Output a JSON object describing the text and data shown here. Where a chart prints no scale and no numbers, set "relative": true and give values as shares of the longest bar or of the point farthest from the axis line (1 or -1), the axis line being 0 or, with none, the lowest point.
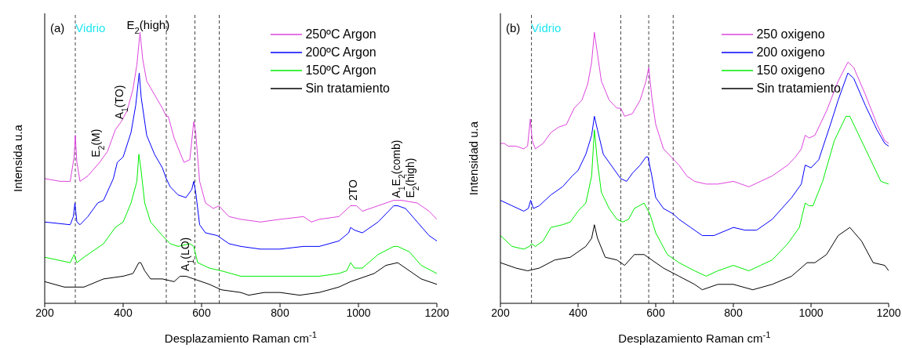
{
  "chart_data": [
    {
      "type": "line",
      "relative": true,
      "xlabel": "Desplazamiento Raman cm$^{-1}$",
      "ylabel": "Intensida u.a",
      "xlim": [
        200,
        1200
      ],
      "xticks": [
        200,
        400,
        600,
        800,
        1000,
        1200
      ],
      "legend": "top right",
      "annotations": [
        "(a)",
        "Vidrio",
        {
          "text": "E$_{2}$(high)",
          "x": 443,
          "y": 1.0
        },
        {
          "text": "E$_{2}$(M)",
          "x": 335,
          "y": 0.53
        },
        {
          "text": "A$_{1}$(TO)",
          "x": 395,
          "y": 0.67
        },
        {
          "text": "A$_{1}$(LO)",
          "x": 562,
          "y": 0.11
        },
        {
          "text": "2TO",
          "x": 990,
          "y": 0.37
        },
        {
          "text": "A$_{1}$E$_{2}$(comb)",
          "x": 1100,
          "y": 0.38
        },
        {
          "text": "E$_{2}$(high)",
          "x": 1137,
          "y": 0.38
        }
      ],
      "ref_lines": [
        {
          "axis": "x",
          "value": 278,
          "color": "#444444",
          "line_style": "dashed"
        },
        {
          "axis": "x",
          "value": 510,
          "color": "#444444",
          "line_style": "dashed"
        },
        {
          "axis": "x",
          "value": 583,
          "color": "#444444",
          "line_style": "dashed"
        },
        {
          "axis": "x",
          "value": 645,
          "color": "#444444",
          "line_style": "dashed"
        }
      ],
      "series": [
        {
          "name": "250ºC Argon",
          "color": "#dd44dd",
          "x": [
            200,
            240,
            265,
            275,
            278,
            282,
            290,
            310,
            340,
            360,
            380,
            395,
            410,
            425,
            435,
            443,
            450,
            460,
            480,
            500,
            510,
            515,
            530,
            555,
            570,
            580,
            585,
            595,
            610,
            630,
            645,
            650,
            670,
            700,
            750,
            800,
            860,
            880,
            900,
            950,
            980,
            995,
            1010,
            1050,
            1090,
            1110,
            1150,
            1180,
            1200
          ],
          "values": [
            0.46,
            0.45,
            0.45,
            0.54,
            0.62,
            0.52,
            0.45,
            0.47,
            0.52,
            0.56,
            0.64,
            0.67,
            0.71,
            0.79,
            0.88,
            1.0,
            0.9,
            0.82,
            0.77,
            0.72,
            0.69,
            0.69,
            0.61,
            0.52,
            0.53,
            0.67,
            0.63,
            0.45,
            0.37,
            0.35,
            0.36,
            0.35,
            0.32,
            0.31,
            0.3,
            0.31,
            0.32,
            0.3,
            0.31,
            0.32,
            0.36,
            0.36,
            0.34,
            0.36,
            0.38,
            0.38,
            0.37,
            0.34,
            0.31
          ]
        },
        {
          "name": "200ºC Argon",
          "color": "#0000ff",
          "x": [
            200,
            265,
            273,
            277,
            282,
            290,
            310,
            335,
            350,
            375,
            385,
            400,
            420,
            432,
            438,
            441,
            446,
            460,
            480,
            500,
            510,
            520,
            540,
            560,
            575,
            580,
            585,
            595,
            610,
            640,
            650,
            670,
            700,
            750,
            800,
            860,
            900,
            950,
            975,
            980,
            990,
            1010,
            1050,
            1090,
            1100,
            1120,
            1150,
            1180,
            1200
          ],
          "values": [
            0.3,
            0.29,
            0.32,
            0.37,
            0.3,
            0.29,
            0.32,
            0.37,
            0.38,
            0.46,
            0.52,
            0.54,
            0.63,
            0.73,
            0.81,
            0.85,
            0.76,
            0.62,
            0.55,
            0.5,
            0.46,
            0.43,
            0.4,
            0.39,
            0.42,
            0.45,
            0.41,
            0.29,
            0.26,
            0.25,
            0.24,
            0.22,
            0.21,
            0.2,
            0.2,
            0.21,
            0.21,
            0.23,
            0.26,
            0.28,
            0.27,
            0.26,
            0.3,
            0.36,
            0.36,
            0.35,
            0.3,
            0.25,
            0.23
          ]
        },
        {
          "name": "150ºC Argon",
          "color": "#00ee00",
          "x": [
            200,
            265,
            275,
            282,
            300,
            330,
            350,
            380,
            400,
            420,
            435,
            440,
            445,
            455,
            470,
            500,
            520,
            540,
            570,
            580,
            590,
            620,
            650,
            700,
            750,
            850,
            900,
            950,
            970,
            980,
            990,
            1010,
            1050,
            1090,
            1100,
            1130,
            1160,
            1200
          ],
          "values": [
            0.17,
            0.15,
            0.18,
            0.15,
            0.17,
            0.2,
            0.22,
            0.28,
            0.3,
            0.37,
            0.45,
            0.55,
            0.5,
            0.37,
            0.3,
            0.25,
            0.22,
            0.21,
            0.22,
            0.21,
            0.15,
            0.13,
            0.12,
            0.1,
            0.1,
            0.1,
            0.1,
            0.11,
            0.12,
            0.15,
            0.13,
            0.13,
            0.18,
            0.21,
            0.21,
            0.19,
            0.14,
            0.11
          ]
        },
        {
          "name": "Sin tratamiento",
          "color": "#000000",
          "x": [
            200,
            250,
            300,
            350,
            400,
            425,
            440,
            445,
            455,
            470,
            500,
            530,
            545,
            560,
            580,
            620,
            650,
            700,
            720,
            760,
            800,
            850,
            900,
            950,
            980,
            1000,
            1040,
            1070,
            1100,
            1130,
            1160,
            1200
          ],
          "values": [
            0.08,
            0.06,
            0.06,
            0.09,
            0.1,
            0.11,
            0.15,
            0.15,
            0.12,
            0.09,
            0.09,
            0.08,
            0.1,
            0.1,
            0.09,
            0.07,
            0.05,
            0.04,
            0.03,
            0.04,
            0.04,
            0.03,
            0.04,
            0.06,
            0.08,
            0.09,
            0.11,
            0.14,
            0.15,
            0.12,
            0.09,
            0.07
          ]
        }
      ]
    },
    {
      "type": "line",
      "relative": true,
      "xlabel": "Desplazamiento Raman cm$^{-1}$",
      "ylabel": "Intensidad u.a",
      "xlim": [
        200,
        1200
      ],
      "xticks": [
        200,
        400,
        600,
        800,
        1000,
        1200
      ],
      "legend": "top right",
      "annotations": [
        "(b)",
        "Vidrio"
      ],
      "ref_lines": [
        {
          "axis": "x",
          "value": 280,
          "color": "#444444",
          "line_style": "dashed"
        },
        {
          "axis": "x",
          "value": 510,
          "color": "#444444",
          "line_style": "dashed"
        },
        {
          "axis": "x",
          "value": 582,
          "color": "#444444",
          "line_style": "dashed"
        },
        {
          "axis": "x",
          "value": 645,
          "color": "#444444",
          "line_style": "dashed"
        }
      ],
      "series": [
        {
          "name": "250 oxigeno",
          "color": "#dd44dd",
          "x": [
            200,
            210,
            220,
            240,
            260,
            270,
            277,
            282,
            290,
            310,
            330,
            350,
            370,
            390,
            410,
            425,
            435,
            442,
            448,
            460,
            480,
            500,
            510,
            520,
            540,
            560,
            575,
            582,
            590,
            600,
            620,
            640,
            660,
            680,
            700,
            730,
            760,
            800,
            840,
            870,
            900,
            940,
            960,
            975,
            985,
            995,
            1010,
            1040,
            1070,
            1095,
            1110,
            1140,
            1170,
            1190,
            1200
          ],
          "values": [
            0.59,
            0.59,
            0.58,
            0.58,
            0.57,
            0.58,
            0.68,
            0.6,
            0.57,
            0.59,
            0.63,
            0.65,
            0.66,
            0.72,
            0.75,
            0.81,
            0.89,
            1.0,
            0.94,
            0.82,
            0.75,
            0.72,
            0.72,
            0.69,
            0.7,
            0.75,
            0.82,
            0.87,
            0.76,
            0.66,
            0.57,
            0.54,
            0.51,
            0.47,
            0.45,
            0.44,
            0.44,
            0.45,
            0.43,
            0.45,
            0.47,
            0.51,
            0.54,
            0.57,
            0.62,
            0.61,
            0.62,
            0.71,
            0.82,
            0.89,
            0.87,
            0.77,
            0.66,
            0.6,
            0.59
          ]
        },
        {
          "name": "200 oxigeno",
          "color": "#0000ff",
          "x": [
            200,
            230,
            260,
            272,
            278,
            285,
            300,
            330,
            360,
            385,
            400,
            420,
            435,
            442,
            450,
            465,
            490,
            510,
            525,
            540,
            560,
            575,
            580,
            590,
            600,
            620,
            645,
            660,
            690,
            720,
            750,
            800,
            830,
            860,
            900,
            950,
            975,
            985,
            1000,
            1020,
            1050,
            1070,
            1095,
            1110,
            1140,
            1170,
            1190,
            1200
          ],
          "values": [
            0.38,
            0.36,
            0.34,
            0.35,
            0.38,
            0.35,
            0.36,
            0.4,
            0.43,
            0.47,
            0.49,
            0.55,
            0.62,
            0.69,
            0.64,
            0.55,
            0.5,
            0.46,
            0.45,
            0.48,
            0.51,
            0.54,
            0.54,
            0.47,
            0.39,
            0.35,
            0.33,
            0.31,
            0.28,
            0.25,
            0.25,
            0.28,
            0.27,
            0.27,
            0.31,
            0.39,
            0.44,
            0.51,
            0.5,
            0.53,
            0.66,
            0.75,
            0.85,
            0.83,
            0.73,
            0.64,
            0.59,
            0.58
          ]
        },
        {
          "name": "150 oxigeno",
          "color": "#00ee00",
          "x": [
            200,
            230,
            260,
            275,
            280,
            290,
            310,
            330,
            360,
            380,
            400,
            420,
            435,
            442,
            450,
            460,
            480,
            500,
            515,
            530,
            545,
            570,
            585,
            600,
            630,
            660,
            700,
            730,
            760,
            800,
            840,
            870,
            900,
            940,
            970,
            985,
            995,
            1005,
            1030,
            1060,
            1090,
            1100,
            1120,
            1150,
            1180,
            1200
          ],
          "values": [
            0.25,
            0.21,
            0.2,
            0.21,
            0.22,
            0.21,
            0.23,
            0.28,
            0.29,
            0.3,
            0.34,
            0.37,
            0.47,
            0.64,
            0.52,
            0.41,
            0.35,
            0.31,
            0.3,
            0.31,
            0.35,
            0.37,
            0.33,
            0.26,
            0.18,
            0.15,
            0.12,
            0.1,
            0.12,
            0.14,
            0.12,
            0.14,
            0.16,
            0.22,
            0.28,
            0.37,
            0.36,
            0.36,
            0.45,
            0.6,
            0.69,
            0.69,
            0.63,
            0.54,
            0.45,
            0.44
          ]
        },
        {
          "name": "Sin tratamiento",
          "color": "#000000",
          "x": [
            200,
            240,
            270,
            300,
            340,
            380,
            420,
            435,
            442,
            450,
            470,
            500,
            520,
            545,
            570,
            590,
            620,
            660,
            700,
            720,
            760,
            800,
            850,
            900,
            950,
            990,
            1010,
            1040,
            1070,
            1100,
            1130,
            1160,
            1190,
            1200
          ],
          "values": [
            0.15,
            0.13,
            0.12,
            0.13,
            0.16,
            0.17,
            0.21,
            0.24,
            0.29,
            0.24,
            0.17,
            0.16,
            0.14,
            0.18,
            0.18,
            0.16,
            0.13,
            0.1,
            0.07,
            0.05,
            0.07,
            0.07,
            0.05,
            0.07,
            0.1,
            0.15,
            0.15,
            0.18,
            0.25,
            0.28,
            0.23,
            0.15,
            0.14,
            0.12
          ]
        }
      ]
    }
  ]
}
